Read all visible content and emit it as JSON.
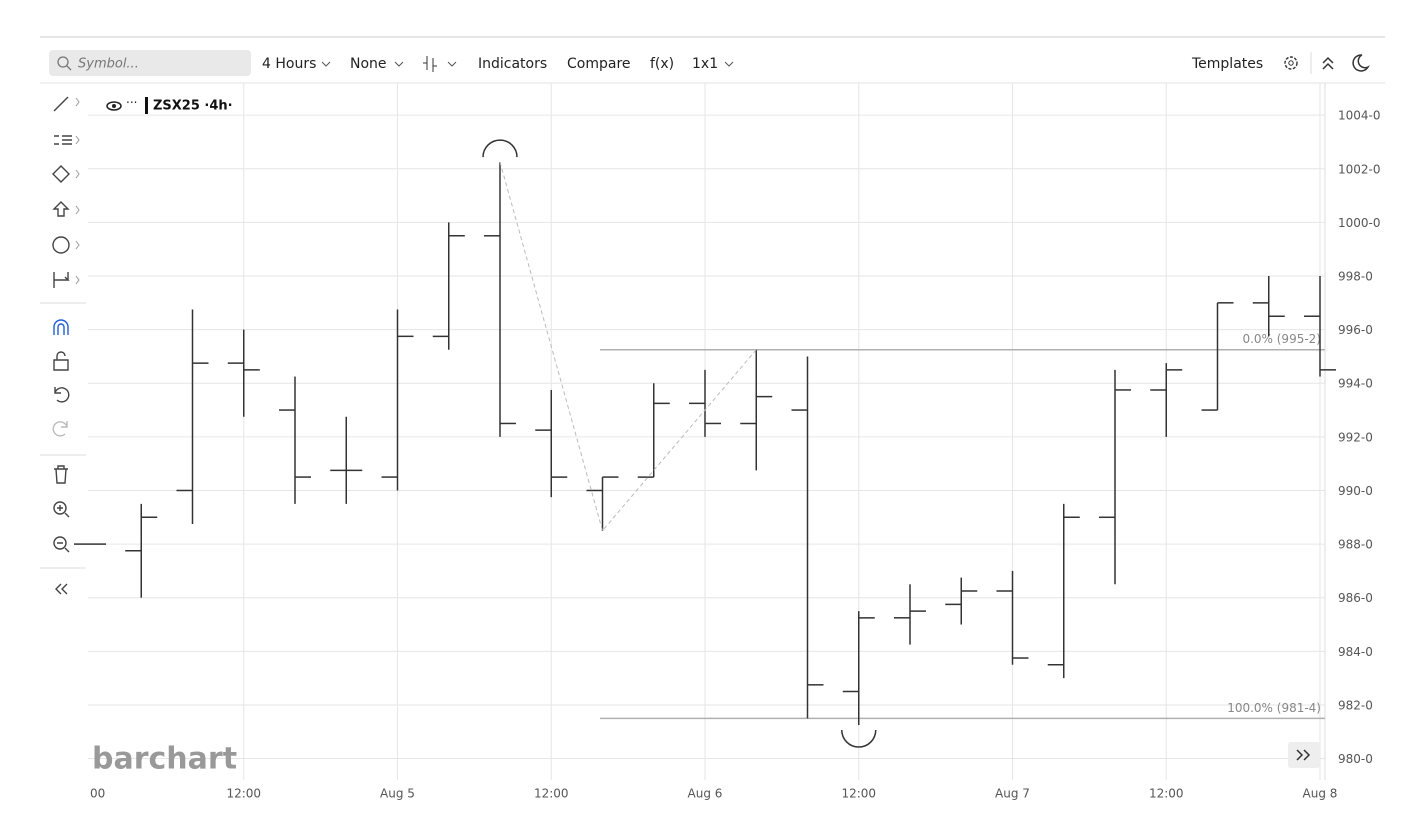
{
  "toolbar": {
    "search_placeholder": "Symbol...",
    "period": "4 Hours",
    "none": "None",
    "indicators": "Indicators",
    "compare": "Compare",
    "fx": "f(x)",
    "layout": "1x1",
    "templates": "Templates"
  },
  "logo": "barchart",
  "chart_data": {
    "type": "ohlc",
    "categories": [
      "00",
      null,
      null,
      "12:00",
      null,
      null,
      "Aug 5",
      null,
      null,
      "12:00",
      null,
      null,
      "Aug 6",
      null,
      null,
      "12:00",
      null,
      null,
      "Aug 7",
      null,
      null,
      "12:00",
      null,
      null,
      "Aug 8"
    ],
    "series": [
      {
        "name": "ZSX25 ·4h·",
        "color": "#333333",
        "open": [
          988.0,
          987.75,
          990.0,
          994.75,
          993.0,
          990.75,
          990.5,
          995.75,
          999.5,
          992.25,
          990.0,
          990.5,
          993.25,
          992.5,
          993.0,
          982.5,
          985.25,
          985.75,
          986.25,
          983.5,
          989.0,
          993.75,
          993.0,
          997.0,
          996.5
        ],
        "high": [
          988.0,
          989.5,
          996.75,
          996.0,
          994.25,
          992.75,
          996.75,
          1000.0,
          1002.25,
          993.75,
          990.5,
          994.0,
          994.5,
          995.25,
          995.0,
          985.5,
          986.5,
          986.75,
          987.0,
          989.5,
          994.5,
          994.75,
          997.0,
          998.0,
          998.0
        ],
        "low": [
          988.0,
          986.0,
          988.75,
          992.75,
          989.5,
          989.5,
          990.0,
          995.25,
          992.0,
          989.75,
          988.5,
          990.5,
          992.0,
          990.75,
          981.5,
          981.25,
          984.25,
          985.0,
          983.5,
          983.0,
          986.5,
          992.0,
          993.0,
          995.75,
          994.25
        ],
        "close": [
          988.0,
          989.0,
          994.75,
          994.5,
          990.5,
          990.75,
          995.75,
          999.5,
          992.5,
          990.5,
          990.5,
          993.25,
          992.5,
          993.5,
          982.75,
          985.25,
          985.5,
          986.25,
          983.75,
          989.0,
          993.75,
          994.5,
          997.0,
          996.5,
          994.5
        ]
      }
    ],
    "ylim": [
      979.2,
      1005.2
    ],
    "yticks": [
      {
        "value": 980,
        "label": "980-0"
      },
      {
        "value": 982,
        "label": "982-0"
      },
      {
        "value": 984,
        "label": "984-0"
      },
      {
        "value": 986,
        "label": "986-0"
      },
      {
        "value": 988,
        "label": "988-0"
      },
      {
        "value": 990,
        "label": "990-0"
      },
      {
        "value": 992,
        "label": "992-0"
      },
      {
        "value": 994,
        "label": "994-0"
      },
      {
        "value": 996,
        "label": "996-0"
      },
      {
        "value": 998,
        "label": "998-0"
      },
      {
        "value": 1000,
        "label": "1000-0"
      },
      {
        "value": 1002,
        "label": "1002-0"
      },
      {
        "value": 1004,
        "label": "1004-0"
      }
    ],
    "grid": true,
    "annotations": [
      {
        "label": "0.0% (995-2)",
        "value": 995.25
      },
      {
        "label": "100.0% (981-4)",
        "value": 981.5
      }
    ]
  }
}
